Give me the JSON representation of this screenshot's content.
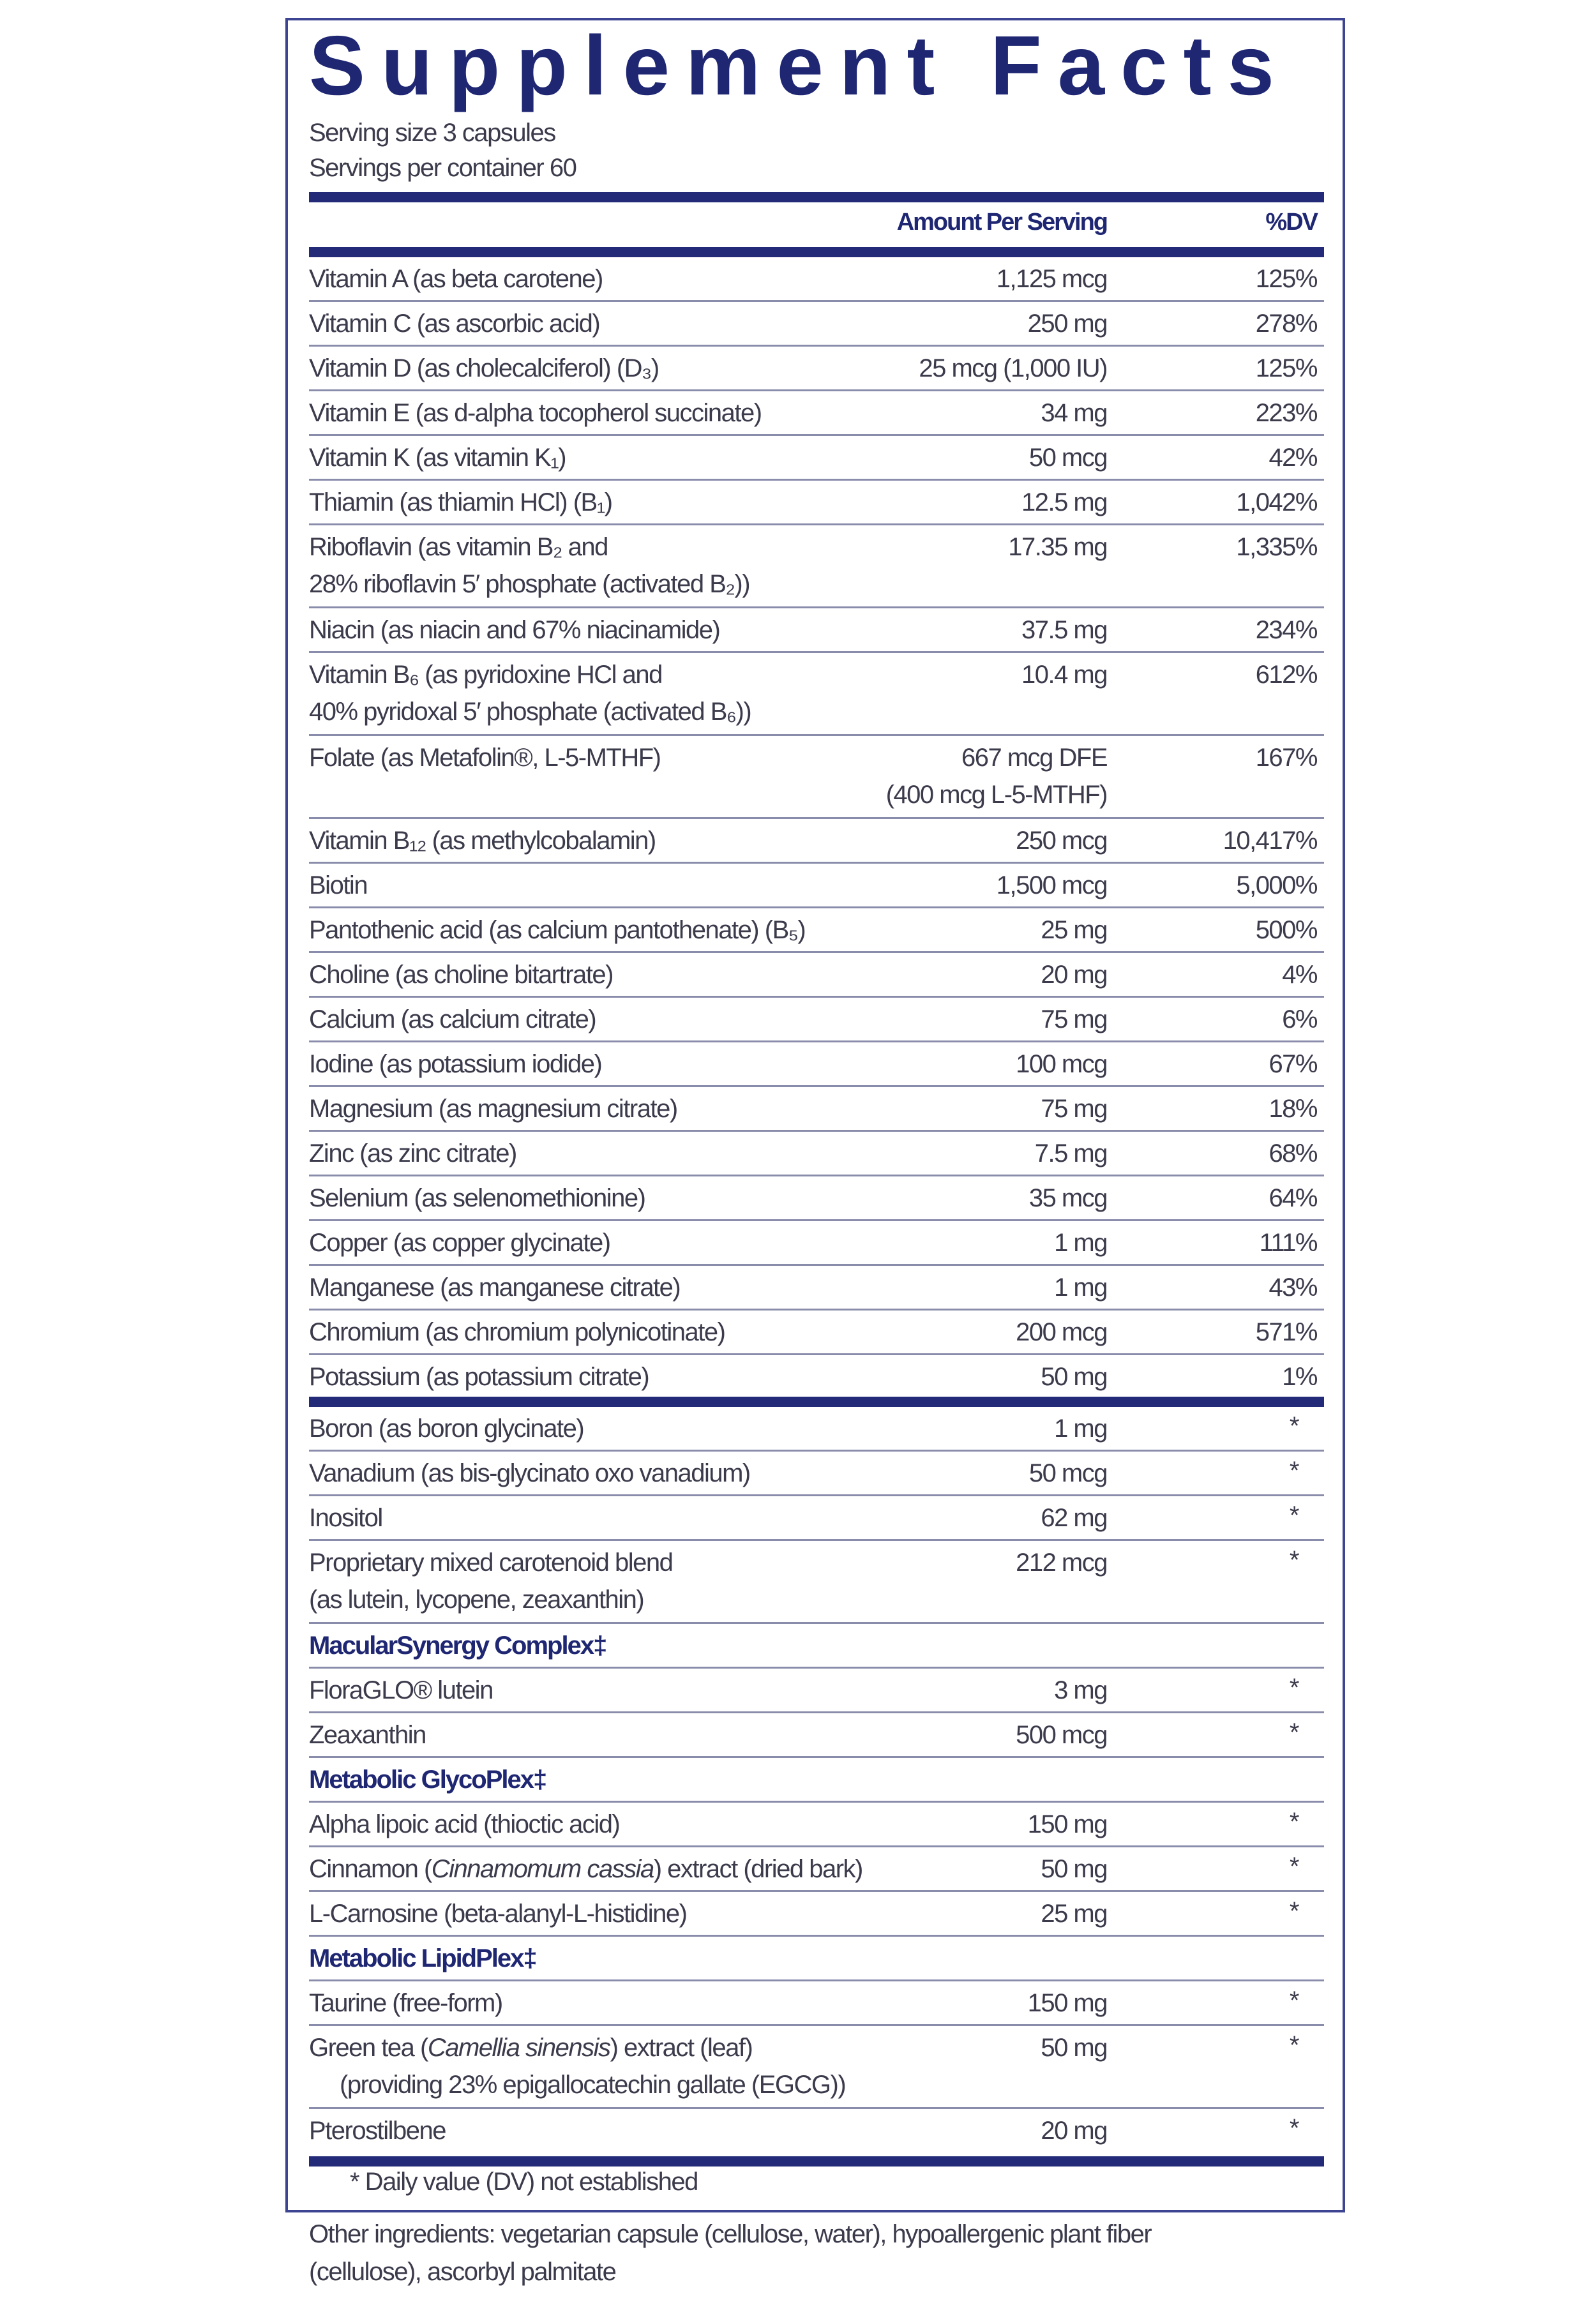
{
  "title": "Supplement Facts",
  "serving_size": "Serving size  3 capsules",
  "servings_per_container": "Servings per container  60",
  "header": {
    "amount": "Amount Per Serving",
    "dv": "%DV"
  },
  "colors": {
    "navy": "#1f2773",
    "rule": "#8a8cab",
    "text": "#3b3b4c"
  },
  "vitamins_minerals": [
    {
      "name": "Vitamin A (as beta carotene)",
      "amount": "1,125 mcg",
      "dv": "125%"
    },
    {
      "name": "Vitamin C (as ascorbic acid)",
      "amount": "250 mg",
      "dv": "278%"
    },
    {
      "name": "Vitamin D (as cholecalciferol) (D₃)",
      "amount": "25 mcg (1,000 IU)",
      "dv": "125%"
    },
    {
      "name": "Vitamin E (as d-alpha tocopherol succinate)",
      "amount": "34 mg",
      "dv": "223%"
    },
    {
      "name": "Vitamin K (as vitamin K₁)",
      "amount": "50 mcg",
      "dv": "42%"
    },
    {
      "name": "Thiamin (as thiamin HCl) (B₁)",
      "amount": "12.5 mg",
      "dv": "1,042%"
    },
    {
      "name": "Riboflavin (as vitamin B₂ and",
      "name2": "28% riboflavin 5′ phosphate (activated B₂))",
      "amount": "17.35 mg",
      "dv": "1,335%"
    },
    {
      "name": "Niacin (as niacin and 67% niacinamide)",
      "amount": "37.5 mg",
      "dv": "234%"
    },
    {
      "name": "Vitamin B₆ (as pyridoxine HCl and",
      "name2": "40% pyridoxal 5′ phosphate (activated B₆))",
      "amount": "10.4 mg",
      "dv": "612%"
    },
    {
      "name": "Folate (as Metafolin®, L-5-MTHF)",
      "amount": "667 mcg DFE",
      "amount2": "(400 mcg L-5-MTHF)",
      "dv": "167%"
    },
    {
      "name": "Vitamin B₁₂ (as methylcobalamin)",
      "amount": "250 mcg",
      "dv": "10,417%"
    },
    {
      "name": "Biotin",
      "amount": "1,500 mcg",
      "dv": "5,000%"
    },
    {
      "name": "Pantothenic acid (as calcium pantothenate) (B₅)",
      "amount": "25 mg",
      "dv": "500%"
    },
    {
      "name": "Choline (as choline bitartrate)",
      "amount": "20 mg",
      "dv": "4%"
    },
    {
      "name": "Calcium (as calcium citrate)",
      "amount": "75 mg",
      "dv": "6%"
    },
    {
      "name": "Iodine (as potassium iodide)",
      "amount": "100 mcg",
      "dv": "67%"
    },
    {
      "name": "Magnesium (as magnesium citrate)",
      "amount": "75 mg",
      "dv": "18%"
    },
    {
      "name": "Zinc (as zinc citrate)",
      "amount": "7.5 mg",
      "dv": "68%"
    },
    {
      "name": "Selenium (as selenomethionine)",
      "amount": "35 mcg",
      "dv": "64%"
    },
    {
      "name": "Copper (as copper glycinate)",
      "amount": "1 mg",
      "dv": "111%"
    },
    {
      "name": "Manganese (as manganese citrate)",
      "amount": "1 mg",
      "dv": "43%"
    },
    {
      "name": "Chromium (as chromium polynicotinate)",
      "amount": "200 mcg",
      "dv": "571%"
    },
    {
      "name": "Potassium (as potassium citrate)",
      "amount": "50 mg",
      "dv": "1%"
    }
  ],
  "other_actives": [
    {
      "name": "Boron (as boron glycinate)",
      "amount": "1 mg",
      "dv": "*"
    },
    {
      "name": "Vanadium (as bis-glycinato oxo vanadium)",
      "amount": "50 mcg",
      "dv": "*"
    },
    {
      "name": "Inositol",
      "amount": "62 mg",
      "dv": "*"
    },
    {
      "name": "Proprietary mixed carotenoid blend",
      "name2": "(as lutein, lycopene, zeaxanthin)",
      "amount": "212 mcg",
      "dv": "*"
    },
    {
      "section": true,
      "name": "MacularSynergy Complex‡"
    },
    {
      "name": "FloraGLO® lutein",
      "amount": "3 mg",
      "dv": "*"
    },
    {
      "name": "Zeaxanthin",
      "amount": "500 mcg",
      "dv": "*"
    },
    {
      "section": true,
      "name": "Metabolic GlycoPlex‡"
    },
    {
      "name": "Alpha lipoic acid (thioctic acid)",
      "amount": "150 mg",
      "dv": "*"
    },
    {
      "name_pre": "Cinnamon (",
      "name_italic": "Cinnamomum cassia",
      "name_post": ") extract (dried bark)",
      "amount": "50 mg",
      "dv": "*"
    },
    {
      "name": "L-Carnosine (beta-alanyl-L-histidine)",
      "amount": "25 mg",
      "dv": "*"
    },
    {
      "section": true,
      "name": "Metabolic LipidPlex‡"
    },
    {
      "name": "Taurine (free-form)",
      "amount": "150 mg",
      "dv": "*"
    },
    {
      "name_pre": "Green tea (",
      "name_italic": "Camellia sinensis",
      "name_post": ") extract (leaf)",
      "name2": "(providing 23% epigallocatechin gallate (EGCG))",
      "name2_indent": true,
      "amount": "50 mg",
      "dv": "*"
    },
    {
      "name": "Pterostilbene",
      "amount": "20 mg",
      "dv": "*"
    }
  ],
  "footnote": "* Daily value (DV) not established",
  "other_ingredients": {
    "line1": "Other ingredients: vegetarian capsule (cellulose, water), hypoallergenic plant fiber",
    "line2": "(cellulose), ascorbyl palmitate"
  }
}
